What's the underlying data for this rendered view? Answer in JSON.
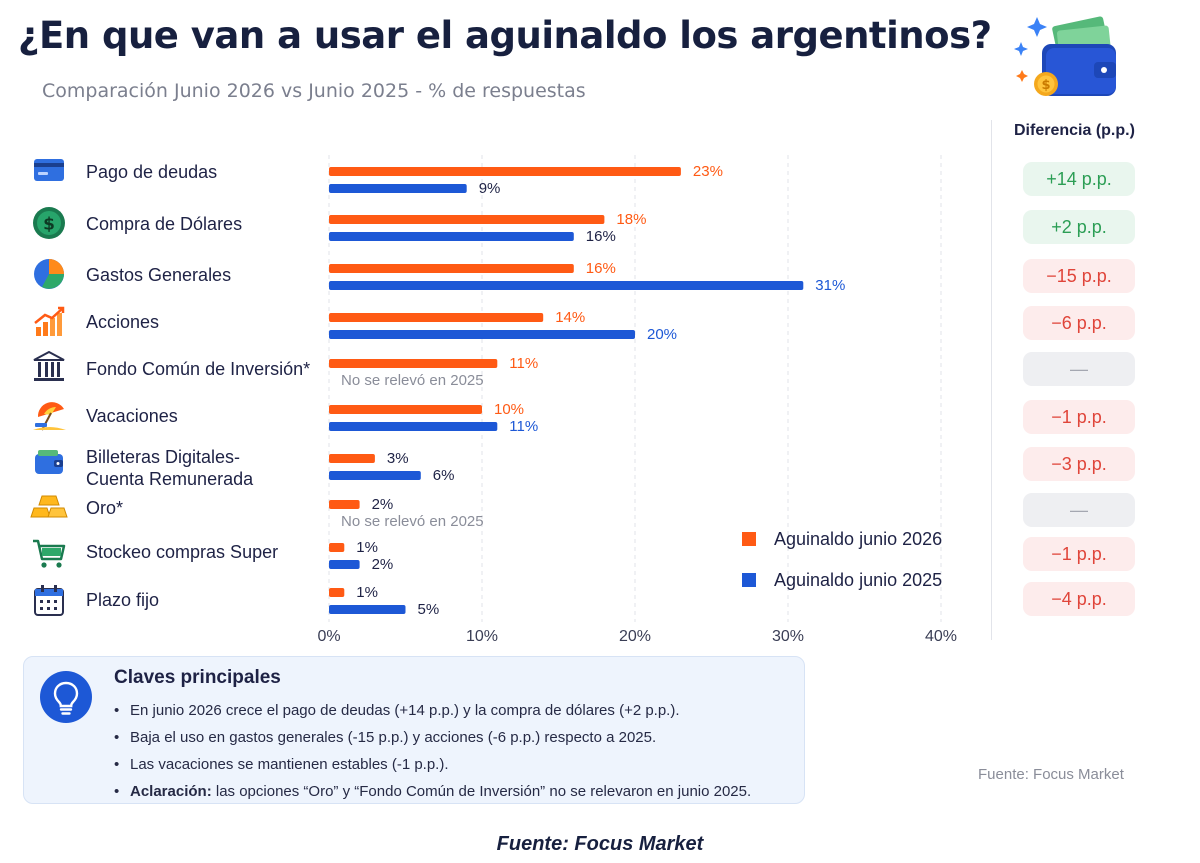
{
  "header": {
    "title": "¿En que van a usar el aguinaldo los argentinos?",
    "subtitle": "Comparación Junio 2026 vs Junio 2025 - % de respuestas"
  },
  "chart_data": {
    "type": "bar",
    "orientation": "horizontal",
    "title": "¿En que van a usar el aguinaldo los argentinos?",
    "subtitle": "Comparación Junio 2026 vs Junio 2025 - % de respuestas",
    "categories": [
      "Pago de deudas",
      "Compra de Dólares",
      "Gastos Generales",
      "Acciones",
      "Fondo Común de Inversión*",
      "Vacaciones",
      "Billeteras Digitales-\nCuenta Remunerada",
      "Oro*",
      "Stockeo compras Super",
      "Plazo fijo"
    ],
    "series": [
      {
        "name": "Aguinaldo junio 2026",
        "color": "#ff5a14",
        "values": [
          23,
          18,
          16,
          14,
          11,
          10,
          3,
          2,
          1,
          1
        ],
        "labels": [
          "23%",
          "18%",
          "16%",
          "14%",
          "11%",
          "10%",
          "3%",
          "2%",
          "1%",
          "1%"
        ]
      },
      {
        "name": "Aguinaldo junio 2025",
        "color": "#1d58d6",
        "values": [
          9,
          16,
          31,
          20,
          null,
          11,
          6,
          null,
          2,
          5
        ],
        "labels": [
          "9%",
          "16%",
          "31%",
          "20%",
          "No se relevó en 2025",
          "11%",
          "6%",
          "No se relevó en 2025",
          "2%",
          "5%"
        ]
      }
    ],
    "xlim": [
      0,
      40
    ],
    "xticks": [
      "0%",
      "10%",
      "20%",
      "30%",
      "40%"
    ],
    "grid": "vertical dashed",
    "legend": "bottom-right",
    "icons": [
      "credit-card-icon",
      "dollar-coin-icon",
      "pie-chart-icon",
      "growth-chart-icon",
      "bank-icon",
      "beach-umbrella-icon",
      "wallet-icon",
      "gold-bars-icon",
      "shopping-cart-icon",
      "calendar-icon"
    ]
  },
  "legend": {
    "items": [
      {
        "label": "Aguinaldo junio 2026",
        "color": "#ff5a14"
      },
      {
        "label": "Aguinaldo junio 2025",
        "color": "#1d58d6"
      }
    ]
  },
  "difference": {
    "header": "Diferencia (p.p.)",
    "values": [
      "+14 p.p.",
      "+2 p.p.",
      "−15 p.p.",
      "−6 p.p.",
      "—",
      "−1 p.p.",
      "−3 p.p.",
      "—",
      "−1 p.p.",
      "−4 p.p."
    ],
    "tones": [
      "pos",
      "pos",
      "neg",
      "neg",
      "neu",
      "neg",
      "neg",
      "neu",
      "neg",
      "neg"
    ]
  },
  "key_points": {
    "title": "Claves principales",
    "items": [
      "En junio 2026 crece el pago de deudas (+14 p.p.) y la compra de dólares (+2 p.p.).",
      "Baja el uso en gastos generales (-15 p.p.) y acciones (-6 p.p.) respecto a 2025.",
      "Las vacaciones se mantienen estables (-1 p.p.)."
    ],
    "note_bold": "Aclaración:",
    "note_text": " las opciones “Oro” y “Fondo Común de Inversión” no se relevaron en junio 2025."
  },
  "source": {
    "right": "Fuente: Focus Market",
    "bottom": "Fuente: Focus Market"
  }
}
